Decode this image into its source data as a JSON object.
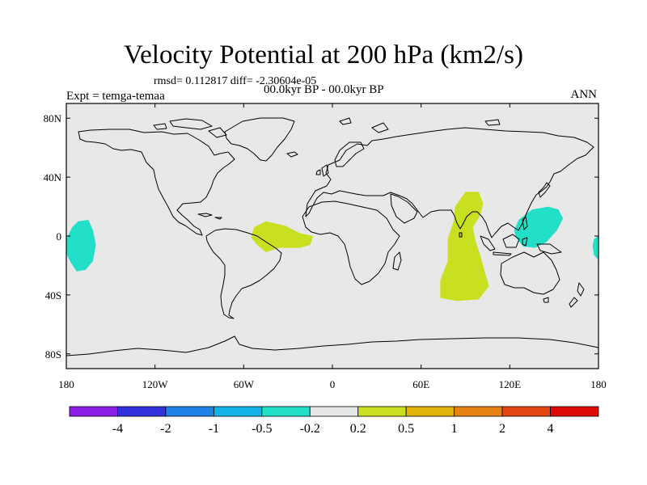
{
  "title": "Velocity Potential at 200 hPa (km2/s)",
  "stats_line": "rmsd= 0.112817 diff= -2.30604e-05",
  "experiment": "Expt = temga-temaa",
  "period": "00.0kyr BP - 00.0kyr BP",
  "season": "ANN",
  "map": {
    "projection": "cylindrical-equidistant",
    "lon_range": [
      -180,
      180
    ],
    "lat_range": [
      -90,
      90
    ],
    "background": "#e8e8e8",
    "coastline_color": "#000000",
    "lat_ticks": [
      {
        "lat": 80,
        "label": "80N"
      },
      {
        "lat": 40,
        "label": "40N"
      },
      {
        "lat": 0,
        "label": "0"
      },
      {
        "lat": -40,
        "label": "40S"
      },
      {
        "lat": -80,
        "label": "80S"
      }
    ],
    "lon_ticks": [
      {
        "lon": -180,
        "label": "180"
      },
      {
        "lon": -120,
        "label": "120W"
      },
      {
        "lon": -60,
        "label": "60W"
      },
      {
        "lon": 0,
        "label": "0"
      },
      {
        "lon": 60,
        "label": "60E"
      },
      {
        "lon": 120,
        "label": "120E"
      },
      {
        "lon": 180,
        "label": "180"
      }
    ],
    "regions": [
      {
        "name": "central-pacific-negative",
        "color": "#22e0c8",
        "lonlat": [
          [
            -172,
            10
          ],
          [
            -165,
            11
          ],
          [
            -162,
            4
          ],
          [
            -160,
            -6
          ],
          [
            -162,
            -17
          ],
          [
            -167,
            -23
          ],
          [
            -173,
            -24
          ],
          [
            -177,
            -18
          ],
          [
            -180,
            -12
          ],
          [
            -180,
            -2
          ],
          [
            -176,
            6
          ]
        ]
      },
      {
        "name": "western-pacific-negative",
        "color": "#22e0c8",
        "lonlat": [
          [
            126,
            11
          ],
          [
            135,
            18
          ],
          [
            146,
            20
          ],
          [
            153,
            18
          ],
          [
            156,
            12
          ],
          [
            152,
            4
          ],
          [
            145,
            -4
          ],
          [
            137,
            -8
          ],
          [
            129,
            -7
          ],
          [
            124,
            -1
          ],
          [
            123,
            4
          ]
        ]
      },
      {
        "name": "dateline-edge-negative",
        "color": "#22e0c8",
        "lonlat": [
          [
            180,
            0
          ],
          [
            177,
            -2
          ],
          [
            176,
            -7
          ],
          [
            177,
            -13
          ],
          [
            180,
            -16
          ]
        ]
      },
      {
        "name": "brazil-atlantic-positive",
        "color": "#c8e020",
        "lonlat": [
          [
            -53,
            6
          ],
          [
            -45,
            10
          ],
          [
            -32,
            7
          ],
          [
            -22,
            2
          ],
          [
            -13,
            0
          ],
          [
            -15,
            -6
          ],
          [
            -22,
            -8
          ],
          [
            -36,
            -8
          ],
          [
            -45,
            -11
          ],
          [
            -51,
            -6
          ],
          [
            -55,
            -1
          ]
        ]
      },
      {
        "name": "indian-ocean-positive",
        "color": "#c8e020",
        "lonlat": [
          [
            83,
            20
          ],
          [
            90,
            30
          ],
          [
            99,
            30
          ],
          [
            102,
            22
          ],
          [
            100,
            14
          ],
          [
            95,
            6
          ],
          [
            97,
            -4
          ],
          [
            100,
            -13
          ],
          [
            103,
            -24
          ],
          [
            106,
            -34
          ],
          [
            99,
            -43
          ],
          [
            84,
            -44
          ],
          [
            73,
            -42
          ],
          [
            73,
            -30
          ],
          [
            78,
            -17
          ],
          [
            78,
            -2
          ],
          [
            82,
            10
          ]
        ]
      }
    ]
  },
  "colorbar": {
    "colors": [
      "#8c1ee6",
      "#3232dc",
      "#1e82e6",
      "#10b4e6",
      "#22e0c8",
      "#e6e6e6",
      "#c8e020",
      "#e0b40a",
      "#e68214",
      "#e64614",
      "#dc0a0a"
    ],
    "labels": [
      "-4",
      "-2",
      "-1",
      "-0.5",
      "-0.2",
      "0.2",
      "0.5",
      "1",
      "2",
      "4"
    ]
  }
}
